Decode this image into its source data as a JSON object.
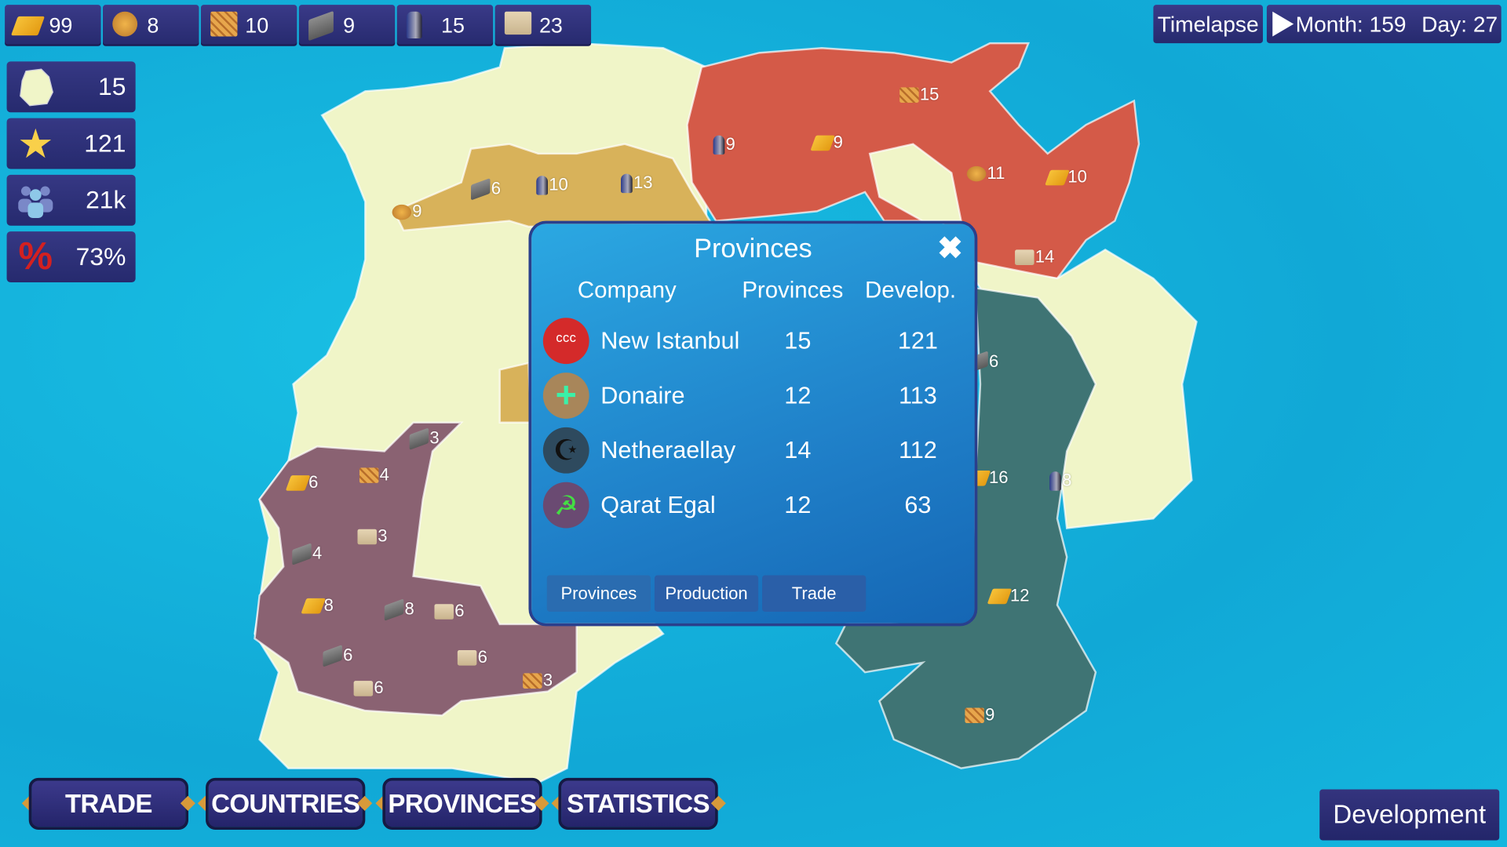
{
  "resources": [
    {
      "icon": "gold-bar-icon",
      "type": "gold",
      "value": "99"
    },
    {
      "icon": "grain-sack-icon",
      "type": "wheat",
      "value": "8"
    },
    {
      "icon": "wood-logs-icon",
      "type": "wood",
      "value": "10"
    },
    {
      "icon": "stone-block-icon",
      "type": "stone",
      "value": "9"
    },
    {
      "icon": "knight-helmet-icon",
      "type": "knight",
      "value": "15"
    },
    {
      "icon": "cardboard-boxes-icon",
      "type": "boxes",
      "value": "23"
    }
  ],
  "stats": [
    {
      "icon": "territory-map-icon",
      "value": "15"
    },
    {
      "icon": "star-icon",
      "value": "121"
    },
    {
      "icon": "population-icon",
      "value": "21k"
    },
    {
      "icon": "percent-icon",
      "value": "73%"
    }
  ],
  "time": {
    "timelapse_label": "Timelapse",
    "play_icon": "play-icon",
    "month_label": "Month: 159",
    "day_label": "Day: 27"
  },
  "panel": {
    "title": "Provinces",
    "columns": [
      "Company",
      "Provinces",
      "Develop."
    ],
    "rows": [
      {
        "company": "New Istanbul",
        "provinces": "15",
        "develop": "121",
        "flag_color": "#d42a2a",
        "emblem": "three-crescents"
      },
      {
        "company": "Donaire",
        "provinces": "12",
        "develop": "113",
        "flag_color": "#a8865a",
        "emblem": "green-cross"
      },
      {
        "company": "Netheraellay",
        "provinces": "14",
        "develop": "112",
        "flag_color": "#2e4a5e",
        "emblem": "crescent-star"
      },
      {
        "company": "Qarat Egal",
        "provinces": "12",
        "develop": "63",
        "flag_color": "#6a4a72",
        "emblem": "hammer-sickle"
      }
    ],
    "tabs": [
      "Provinces",
      "Production",
      "Trade"
    ],
    "active_tab": "Provinces"
  },
  "bottom_buttons": [
    "TRADE",
    "COUNTRIES",
    "PROVINCES",
    "STATISTICS"
  ],
  "development_label": "Development",
  "colors": {
    "new_istanbul": "#d45a48",
    "donaire": "#d8b25a",
    "netheraellay": "#3f7474",
    "qarat_egal": "#8a6272",
    "unclaimed": "#f0f5c8",
    "sea": "#14b4dc"
  },
  "map_markers": [
    {
      "type": "wheat",
      "value": "9"
    },
    {
      "type": "stone",
      "value": "6"
    },
    {
      "type": "knight",
      "value": "10"
    },
    {
      "type": "knight",
      "value": "13"
    },
    {
      "type": "knight",
      "value": "9"
    },
    {
      "type": "gold",
      "value": "9"
    },
    {
      "type": "wood",
      "value": "15"
    },
    {
      "type": "wheat",
      "value": "11"
    },
    {
      "type": "gold",
      "value": "10"
    },
    {
      "type": "boxes",
      "value": "14"
    },
    {
      "type": "stone",
      "value": "6"
    },
    {
      "type": "gold",
      "value": "16"
    },
    {
      "type": "knight",
      "value": "8"
    },
    {
      "type": "gold",
      "value": "12"
    },
    {
      "type": "wood",
      "value": "9"
    },
    {
      "type": "gold",
      "value": "6"
    },
    {
      "type": "wood",
      "value": "4"
    },
    {
      "type": "stone",
      "value": "3"
    },
    {
      "type": "stone",
      "value": "4"
    },
    {
      "type": "boxes",
      "value": "3"
    },
    {
      "type": "gold",
      "value": "8"
    },
    {
      "type": "stone",
      "value": "8"
    },
    {
      "type": "boxes",
      "value": "6"
    },
    {
      "type": "stone",
      "value": "6"
    },
    {
      "type": "boxes",
      "value": "6"
    },
    {
      "type": "boxes",
      "value": "6"
    },
    {
      "type": "wood",
      "value": "3"
    }
  ]
}
